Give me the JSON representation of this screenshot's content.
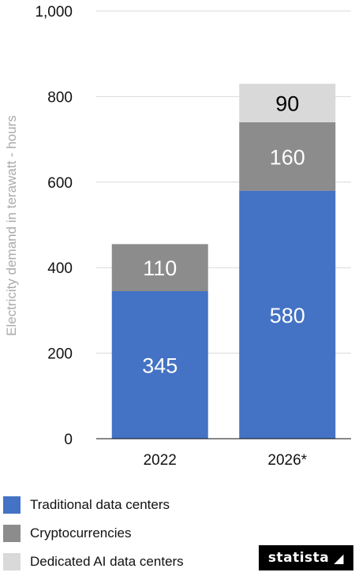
{
  "chart_data": {
    "type": "bar",
    "stacked": true,
    "categories": [
      "2022",
      "2026*"
    ],
    "series": [
      {
        "name": "Traditional data centers",
        "values": [
          345,
          580
        ],
        "color": "#4472c4",
        "label_color": "#ffffff"
      },
      {
        "name": "Cryptocurrencies",
        "values": [
          110,
          160
        ],
        "color": "#8c8c8c",
        "label_color": "#ffffff"
      },
      {
        "name": "Dedicated AI data centers",
        "values": [
          null,
          90
        ],
        "color": "#d9d9d9",
        "label_color": "#000000"
      }
    ],
    "ylabel": "Electricity demand in terawatt - hours",
    "ylim": [
      0,
      1000
    ],
    "yticks": [
      0,
      200,
      400,
      600,
      800,
      1000
    ],
    "ytick_labels": [
      "0",
      "200",
      "400",
      "600",
      "800",
      "1,000"
    ],
    "grid": true,
    "legend_position": "bottom-left"
  },
  "legend": [
    {
      "label": "Traditional data centers",
      "color": "#4472c4"
    },
    {
      "label": "Cryptocurrencies",
      "color": "#8c8c8c"
    },
    {
      "label": "Dedicated AI data centers",
      "color": "#d9d9d9"
    }
  ],
  "brand": {
    "label": "statista",
    "icon": "statista-logo-icon"
  }
}
